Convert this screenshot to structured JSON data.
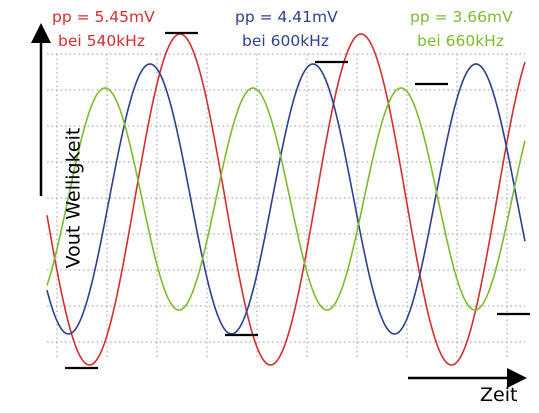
{
  "chart_data": {
    "type": "line",
    "title": "",
    "xlabel": "Zeit",
    "ylabel": "Vout Welligkeit",
    "grid": true,
    "series": [
      {
        "name": "pp = 5.45mV",
        "sublabel": "bei 540kHz",
        "frequency_khz": 540,
        "peak_to_peak_mV": 5.45,
        "color": "#d32f2f"
      },
      {
        "name": "pp = 4.41mV",
        "sublabel": "bei 600kHz",
        "frequency_khz": 600,
        "peak_to_peak_mV": 4.41,
        "color": "#2e3f91"
      },
      {
        "name": "pp = 3.66mV",
        "sublabel": "bei 660kHz",
        "frequency_khz": 660,
        "peak_to_peak_mV": 3.66,
        "color": "#7dbb2e"
      }
    ]
  }
}
